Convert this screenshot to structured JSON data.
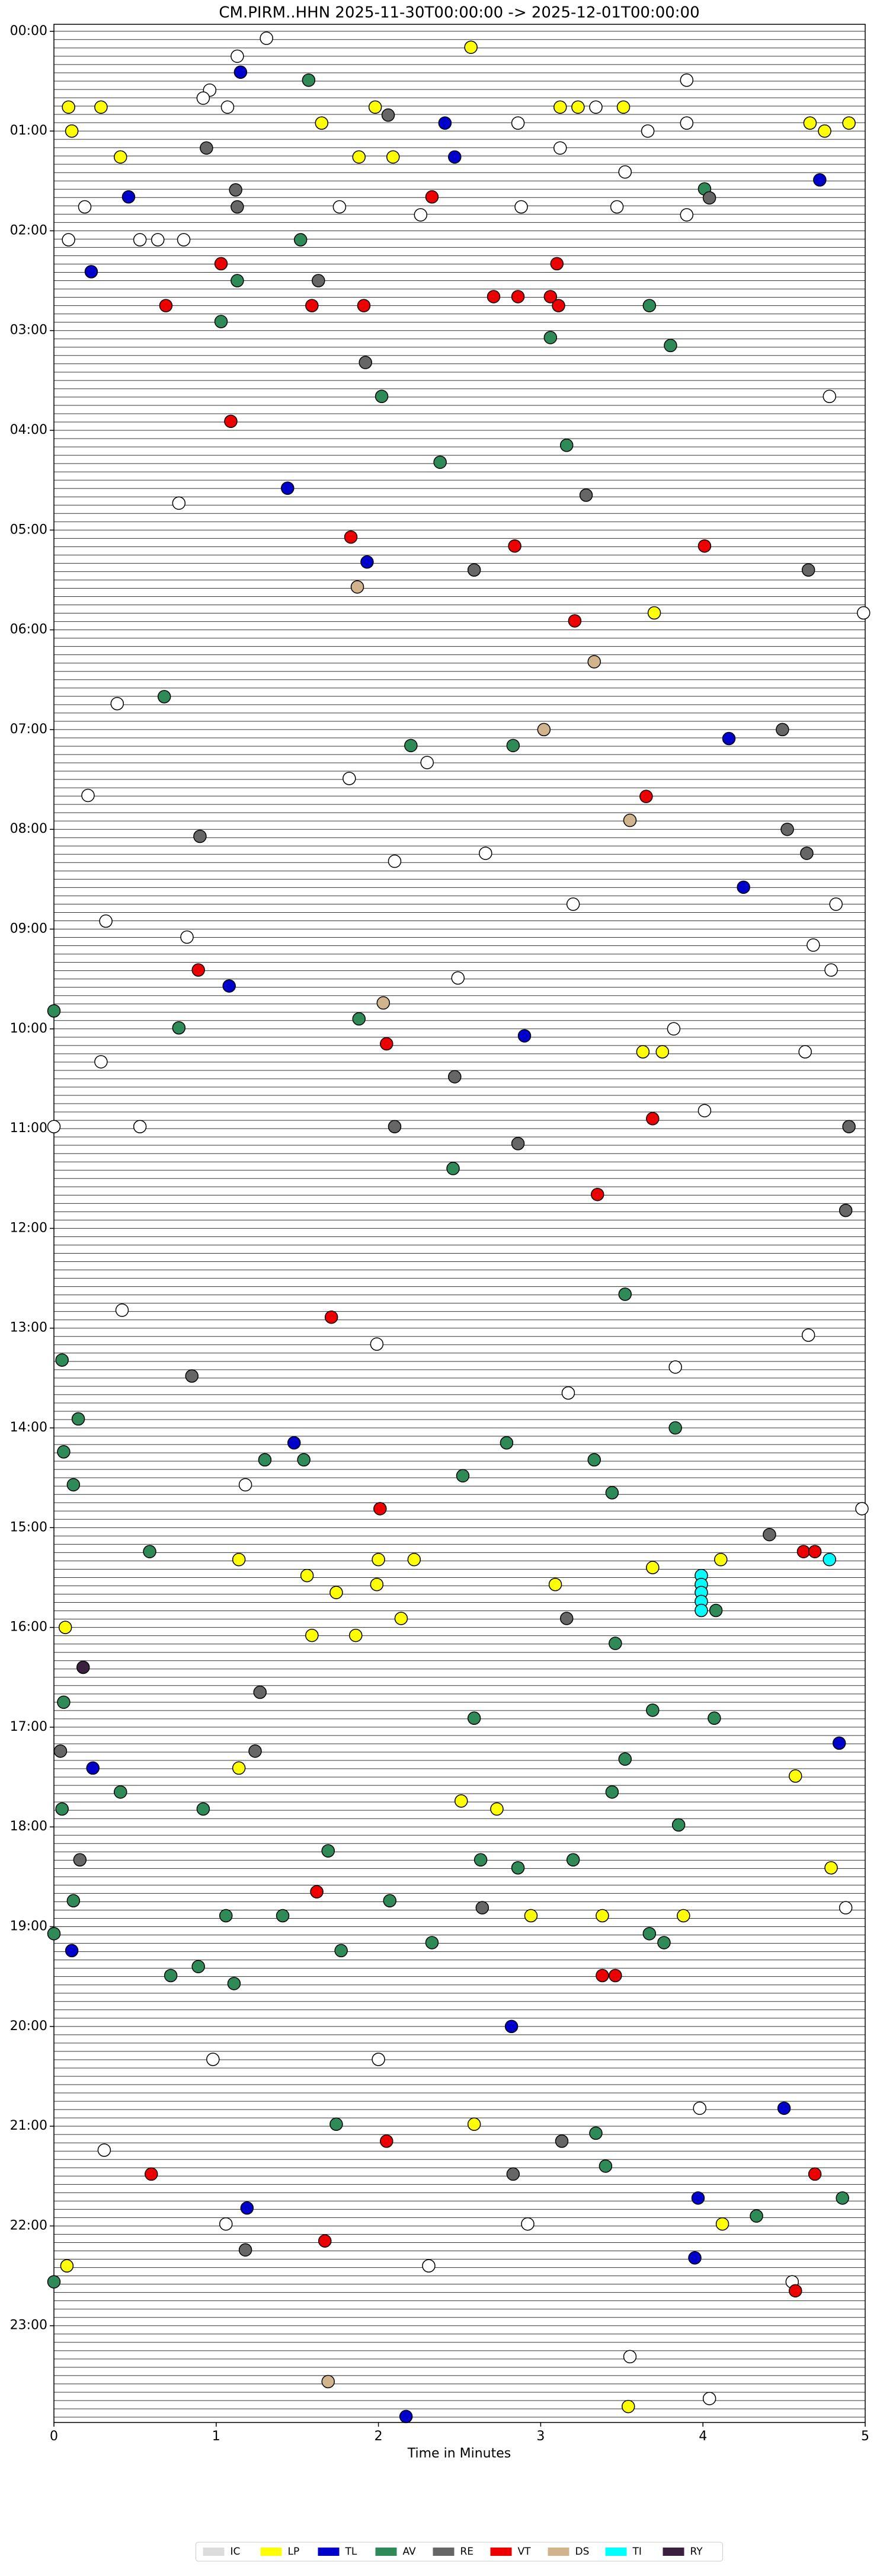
{
  "chart_data": {
    "type": "scatter",
    "title": "CM.PIRM..HHN  2025-11-30T00:00:00 -> 2025-12-01T00:00:00",
    "x_label": "Time in Minutes",
    "xlim": [
      0,
      5
    ],
    "xticks": [
      0,
      1,
      2,
      3,
      4,
      5
    ],
    "ylim": [
      -0.07,
      23.97
    ],
    "y_inverted": true,
    "yticks": [
      {
        "value": 0,
        "label": "00:00"
      },
      {
        "value": 1,
        "label": "01:00"
      },
      {
        "value": 2,
        "label": "02:00"
      },
      {
        "value": 3,
        "label": "03:00"
      },
      {
        "value": 4,
        "label": "04:00"
      },
      {
        "value": 5,
        "label": "05:00"
      },
      {
        "value": 6,
        "label": "06:00"
      },
      {
        "value": 7,
        "label": "07:00"
      },
      {
        "value": 8,
        "label": "08:00"
      },
      {
        "value": 9,
        "label": "09:00"
      },
      {
        "value": 10,
        "label": "10:00"
      },
      {
        "value": 11,
        "label": "11:00"
      },
      {
        "value": 12,
        "label": "12:00"
      },
      {
        "value": 13,
        "label": "13:00"
      },
      {
        "value": 14,
        "label": "14:00"
      },
      {
        "value": 15,
        "label": "15:00"
      },
      {
        "value": 16,
        "label": "16:00"
      },
      {
        "value": 17,
        "label": "17:00"
      },
      {
        "value": 18,
        "label": "18:00"
      },
      {
        "value": 19,
        "label": "19:00"
      },
      {
        "value": 20,
        "label": "20:00"
      },
      {
        "value": 21,
        "label": "21:00"
      },
      {
        "value": 22,
        "label": "22:00"
      },
      {
        "value": 23,
        "label": "23:00"
      }
    ],
    "legend": "bottom",
    "series": [
      {
        "name": "IC",
        "color": "#dcdcdc",
        "x": [
          1.31,
          1.13,
          3.9,
          0.96,
          0.92,
          1.07,
          3.34,
          2.86,
          3.9,
          3.66,
          3.12,
          3.52,
          0.19,
          2.88,
          3.47,
          1.76,
          2.26,
          3.9,
          0.09,
          0.53,
          0.64,
          0.8,
          0,
          0.53,
          4.99,
          4.78,
          4.98,
          0.77,
          0.39,
          2.3,
          0.21,
          1.82,
          2.66,
          2.1,
          3.2,
          4.82,
          0.32,
          0.82,
          4.68,
          2.49,
          4.79,
          0.29,
          4.63,
          3.82,
          4.01,
          3.83,
          0.42,
          1.99,
          3.17,
          4.65,
          1.18,
          4.88,
          0.98,
          2.0,
          3.98,
          0.31,
          1.06,
          2.92,
          2.31,
          4.55,
          3.55,
          4.04
        ],
        "y": [
          0.07,
          0.25,
          0.49,
          0.59,
          0.67,
          0.76,
          0.76,
          0.92,
          0.92,
          1.0,
          1.17,
          1.41,
          1.76,
          1.76,
          1.76,
          1.76,
          1.84,
          1.84,
          2.09,
          2.09,
          2.09,
          2.09,
          10.98,
          10.98,
          5.83,
          3.66,
          14.81,
          4.73,
          6.74,
          7.33,
          7.66,
          7.49,
          8.24,
          8.32,
          8.75,
          8.75,
          8.92,
          9.08,
          9.16,
          9.49,
          9.41,
          10.33,
          10.23,
          10.0,
          10.82,
          13.39,
          12.82,
          13.16,
          13.65,
          13.07,
          14.57,
          18.81,
          20.33,
          20.33,
          20.82,
          21.24,
          21.98,
          21.98,
          22.4,
          22.56,
          23.31,
          23.73
        ]
      },
      {
        "name": "LP",
        "color": "#ffff00",
        "x": [
          2.57,
          0.09,
          0.29,
          1.98,
          3.12,
          3.23,
          3.51,
          1.65,
          4.66,
          4.9,
          4.75,
          0.11,
          0.41,
          1.88,
          2.09,
          3.7,
          3.63,
          3.75,
          1.14,
          2.0,
          2.22,
          4.11,
          3.69,
          1.56,
          1.74,
          3.09,
          1.99,
          0.07,
          1.59,
          1.86,
          2.14,
          4.57,
          1.14,
          2.51,
          2.73,
          4.79,
          2.94,
          3.38,
          3.88,
          2.59,
          4.12,
          0.08,
          3.54
        ],
        "y": [
          0.16,
          0.76,
          0.76,
          0.76,
          0.76,
          0.76,
          0.76,
          0.92,
          0.92,
          0.92,
          1.0,
          1.0,
          1.26,
          1.26,
          1.26,
          5.83,
          10.23,
          10.23,
          15.32,
          15.32,
          15.32,
          15.32,
          15.4,
          15.48,
          15.65,
          15.57,
          15.57,
          16.0,
          16.08,
          16.08,
          15.91,
          17.49,
          17.41,
          17.74,
          17.82,
          18.41,
          18.89,
          18.89,
          18.89,
          20.98,
          21.98,
          22.4,
          23.81
        ]
      },
      {
        "name": "TL",
        "color": "#0000cc",
        "x": [
          1.15,
          2.41,
          2.47,
          4.72,
          0.46,
          0.23,
          1.44,
          1.93,
          4.16,
          4.25,
          1.08,
          2.9,
          1.48,
          4.84,
          0.24,
          0.11,
          2.82,
          4.5,
          3.97,
          1.19,
          3.95,
          2.17
        ],
        "y": [
          0.41,
          0.92,
          1.26,
          1.49,
          1.66,
          2.41,
          4.58,
          5.32,
          7.09,
          8.58,
          9.57,
          10.07,
          14.15,
          17.16,
          17.41,
          19.24,
          20.0,
          20.82,
          21.72,
          21.82,
          22.32,
          23.91
        ]
      },
      {
        "name": "AV",
        "color": "#2e8b57",
        "x": [
          1.57,
          4.01,
          1.52,
          1.13,
          1.03,
          3.67,
          3.06,
          3.8,
          2.02,
          3.16,
          2.38,
          0.68,
          2.2,
          2.83,
          0,
          0.77,
          1.88,
          2.46,
          3.52,
          0.05,
          0.15,
          3.83,
          2.79,
          0.06,
          1.3,
          1.54,
          3.33,
          0.12,
          2.52,
          3.44,
          0.59,
          4.08,
          3.46,
          0.06,
          2.59,
          3.69,
          4.07,
          3.52,
          0.41,
          0.92,
          0.05,
          3.44,
          3.85,
          1.69,
          2.63,
          2.86,
          3.2,
          0.12,
          2.07,
          1.06,
          1.41,
          0,
          3.67,
          2.33,
          1.77,
          3.76,
          0.89,
          0.72,
          1.11,
          1.74,
          3.34,
          3.4,
          4.86,
          4.33,
          0
        ],
        "y": [
          0.49,
          1.58,
          2.09,
          2.5,
          2.91,
          2.75,
          3.07,
          3.15,
          3.66,
          4.15,
          4.32,
          6.67,
          7.16,
          7.16,
          9.82,
          9.99,
          9.9,
          11.4,
          12.66,
          13.32,
          13.91,
          14.0,
          14.15,
          14.24,
          14.32,
          14.32,
          14.32,
          14.57,
          14.48,
          14.65,
          15.24,
          15.83,
          16.16,
          16.75,
          16.91,
          16.83,
          16.91,
          17.32,
          17.65,
          17.82,
          17.82,
          17.65,
          17.98,
          18.24,
          18.33,
          18.41,
          18.33,
          18.74,
          18.74,
          18.89,
          18.89,
          19.07,
          19.07,
          19.16,
          19.24,
          19.16,
          19.4,
          19.49,
          19.57,
          20.98,
          21.07,
          21.4,
          21.72,
          21.9,
          22.56
        ]
      },
      {
        "name": "RE",
        "color": "#666666",
        "x": [
          2.06,
          0.94,
          1.12,
          4.04,
          1.13,
          1.63,
          1.92,
          3.28,
          2.59,
          4.65,
          4.49,
          4.52,
          0.9,
          4.64,
          2.47,
          2.1,
          4.9,
          2.86,
          4.88,
          0.85,
          4.41,
          3.16,
          1.27,
          0.04,
          1.24,
          0.16,
          2.64,
          3.13,
          2.83,
          1.18
        ],
        "y": [
          0.84,
          1.17,
          1.59,
          1.67,
          1.76,
          2.5,
          3.32,
          4.65,
          5.4,
          5.4,
          7.0,
          8.0,
          8.07,
          8.24,
          10.48,
          10.98,
          10.98,
          11.15,
          11.82,
          13.48,
          15.07,
          15.91,
          16.65,
          17.24,
          17.24,
          18.33,
          18.81,
          21.15,
          21.48,
          22.24
        ]
      },
      {
        "name": "VT",
        "color": "#ee0000",
        "x": [
          2.33,
          1.03,
          3.1,
          0.69,
          1.59,
          1.91,
          2.71,
          2.86,
          3.06,
          3.11,
          1.09,
          1.83,
          2.84,
          4.01,
          3.21,
          3.65,
          0.89,
          2.05,
          3.69,
          3.35,
          1.71,
          2.01,
          4.62,
          4.69,
          1.62,
          3.38,
          3.46,
          2.05,
          4.69,
          0.6,
          1.67,
          4.57
        ],
        "y": [
          1.66,
          2.33,
          2.33,
          2.75,
          2.75,
          2.75,
          2.66,
          2.66,
          2.66,
          2.75,
          3.91,
          5.07,
          5.16,
          5.16,
          5.91,
          7.67,
          9.41,
          10.15,
          10.9,
          11.66,
          12.89,
          14.81,
          15.24,
          15.24,
          18.65,
          19.49,
          19.49,
          21.15,
          21.48,
          21.48,
          22.15,
          22.65
        ]
      },
      {
        "name": "DS",
        "color": "#d2b48c",
        "x": [
          1.87,
          3.33,
          3.02,
          3.55,
          2.03,
          1.69
        ],
        "y": [
          5.57,
          6.32,
          7.0,
          7.91,
          9.74,
          23.56
        ]
      },
      {
        "name": "TI",
        "color": "#00ffff",
        "x": [
          4.78,
          3.99,
          3.99,
          3.99,
          3.99,
          3.99
        ],
        "y": [
          15.32,
          15.48,
          15.57,
          15.65,
          15.74,
          15.83
        ]
      },
      {
        "name": "RY",
        "color": "#3b2040",
        "x": [
          0.18
        ],
        "y": [
          16.4
        ]
      }
    ]
  }
}
